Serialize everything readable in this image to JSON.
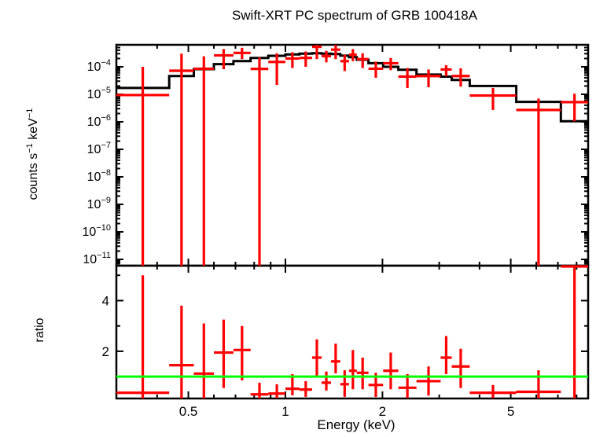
{
  "title": "Swift-XRT PC spectrum of GRB 100418A",
  "colors": {
    "data": "#ff0000",
    "model": "#000000",
    "reference_line": "#00ff00",
    "axis": "#000000",
    "background": "#ffffff"
  },
  "chart_data": {
    "type": "line",
    "title": "Swift-XRT PC spectrum of GRB 100418A",
    "xlabel": "Energy (keV)",
    "ylabel_top_parts": [
      {
        "text": "counts s",
        "sup": false
      },
      {
        "text": "−1",
        "sup": true
      },
      {
        "text": " keV",
        "sup": false
      },
      {
        "text": "−1",
        "sup": true
      }
    ],
    "ylabel_top_plain": "counts s⁻¹ keV⁻¹",
    "ylabel_bottom": "ratio",
    "x_scale": "log",
    "xlim": [
      0.299,
      8.69
    ],
    "x_major_ticks": [
      0.5,
      1,
      2,
      5
    ],
    "x_major_tick_labels": [
      "0.5",
      "1",
      "2",
      "5"
    ],
    "x_minor_ticks": [
      0.4,
      0.6,
      0.7,
      0.8,
      0.9,
      3,
      4,
      6,
      7,
      8
    ],
    "panels": [
      {
        "name": "spectrum",
        "y_scale": "log",
        "ylim": [
          5.9e-12,
          0.00063
        ],
        "y_major_ticks": [
          {
            "value": 0.0001,
            "exp": "−4"
          },
          {
            "value": 1e-05,
            "exp": "−5"
          },
          {
            "value": 1e-06,
            "exp": "−6"
          },
          {
            "value": 1e-07,
            "exp": "−7"
          },
          {
            "value": 1e-08,
            "exp": "−8"
          },
          {
            "value": 1e-09,
            "exp": "−9"
          },
          {
            "value": 1e-10,
            "exp": "−10"
          },
          {
            "value": 1e-11,
            "exp": "−11"
          }
        ]
      },
      {
        "name": "ratio",
        "y_scale": "linear",
        "ylim": [
          0.136,
          5.38
        ],
        "y_major_ticks": [
          {
            "value": 2,
            "label": "2"
          },
          {
            "value": 4,
            "label": "4"
          }
        ],
        "y_minor_ticks": [
          1,
          3,
          5
        ],
        "reference_line": 1
      }
    ],
    "bins": [
      {
        "e_lo": 0.299,
        "e_hi": 0.436,
        "counts": 9.4e-06,
        "counts_hi": 0.0001,
        "counts_lo": null,
        "model": 1.7e-05,
        "ratio": 0.36,
        "ratio_hi": 5.0,
        "ratio_lo": null
      },
      {
        "e_lo": 0.436,
        "e_hi": 0.52,
        "counts": 7.2e-05,
        "counts_hi": 0.0003,
        "counts_lo": null,
        "model": 4.6e-05,
        "ratio": 1.45,
        "ratio_hi": 3.8,
        "ratio_lo": null
      },
      {
        "e_lo": 0.52,
        "e_hi": 0.6,
        "counts": 8.5e-05,
        "counts_hi": 0.00024,
        "counts_lo": null,
        "model": 8.2e-05,
        "ratio": 1.12,
        "ratio_hi": 3.1,
        "ratio_lo": null
      },
      {
        "e_lo": 0.6,
        "e_hi": 0.69,
        "counts": 0.00026,
        "counts_hi": 0.00044,
        "counts_lo": 8.2e-05,
        "model": 0.000125,
        "ratio": 1.95,
        "ratio_hi": 3.25,
        "ratio_lo": 0.55
      },
      {
        "e_lo": 0.69,
        "e_hi": 0.78,
        "counts": 0.00032,
        "counts_hi": 0.00049,
        "counts_lo": 0.00019,
        "model": 0.00016,
        "ratio": 2.05,
        "ratio_hi": 3.0,
        "ratio_lo": 0.85
      },
      {
        "e_lo": 0.78,
        "e_hi": 0.885,
        "counts": 8.4e-05,
        "counts_hi": 0.00022,
        "counts_lo": null,
        "model": 0.00021,
        "ratio": 0.3,
        "ratio_hi": 0.76,
        "ratio_lo": null
      },
      {
        "e_lo": 0.885,
        "e_hi": 1.0,
        "counts": 0.00015,
        "counts_hi": 0.00031,
        "counts_lo": 2.2e-05,
        "model": 0.00025,
        "ratio": 0.33,
        "ratio_hi": 0.7,
        "ratio_lo": 0.15
      },
      {
        "e_lo": 1.0,
        "e_hi": 1.105,
        "counts": 0.0002,
        "counts_hi": 0.00034,
        "counts_lo": 9e-05,
        "model": 0.00028,
        "ratio": 0.52,
        "ratio_hi": 1.1,
        "ratio_lo": 0.26
      },
      {
        "e_lo": 1.105,
        "e_hi": 1.21,
        "counts": 0.00021,
        "counts_hi": 0.00036,
        "counts_lo": 0.0001,
        "model": 0.0003,
        "ratio": 0.49,
        "ratio_hi": 0.82,
        "ratio_lo": 0.2
      },
      {
        "e_lo": 1.21,
        "e_hi": 1.295,
        "counts": 0.00053,
        "counts_hi": null,
        "counts_lo": 0.00019,
        "model": 0.00031,
        "ratio": 1.75,
        "ratio_hi": 2.47,
        "ratio_lo": 1.03
      },
      {
        "e_lo": 1.295,
        "e_hi": 1.385,
        "counts": 0.000245,
        "counts_hi": 0.00038,
        "counts_lo": 0.000145,
        "model": 0.0003,
        "ratio": 0.76,
        "ratio_hi": 1.2,
        "ratio_lo": 0.45
      },
      {
        "e_lo": 1.385,
        "e_hi": 1.48,
        "counts": 0.00042,
        "counts_hi": null,
        "counts_lo": 0.00019,
        "model": 0.00029,
        "ratio": 1.6,
        "ratio_hi": 2.3,
        "ratio_lo": 1.13
      },
      {
        "e_lo": 1.48,
        "e_hi": 1.575,
        "counts": 0.00016,
        "counts_hi": 0.00028,
        "counts_lo": 7e-05,
        "model": 0.000255,
        "ratio": 0.7,
        "ratio_hi": 1.25,
        "ratio_lo": 0.2
      },
      {
        "e_lo": 1.575,
        "e_hi": 1.665,
        "counts": 0.000275,
        "counts_hi": 0.00044,
        "counts_lo": 0.00016,
        "model": 0.000225,
        "ratio": 1.23,
        "ratio_hi": 2.05,
        "ratio_lo": 0.5
      },
      {
        "e_lo": 1.665,
        "e_hi": 1.81,
        "counts": 0.00019,
        "counts_hi": 0.00031,
        "counts_lo": 9e-05,
        "model": 0.00018,
        "ratio": 1.15,
        "ratio_hi": 1.75,
        "ratio_lo": 0.5
      },
      {
        "e_lo": 1.81,
        "e_hi": 2.01,
        "counts": 8.5e-05,
        "counts_hi": 0.000155,
        "counts_lo": 4e-05,
        "model": 0.000135,
        "ratio": 0.67,
        "ratio_hi": 1.15,
        "ratio_lo": 0.2
      },
      {
        "e_lo": 2.01,
        "e_hi": 2.24,
        "counts": 0.000135,
        "counts_hi": 0.00021,
        "counts_lo": 7.5e-05,
        "model": 0.0001,
        "ratio": 1.23,
        "ratio_hi": 1.95,
        "ratio_lo": 0.5
      },
      {
        "e_lo": 2.24,
        "e_hi": 2.55,
        "counts": 4.4e-05,
        "counts_hi": 9e-05,
        "counts_lo": 1.7e-05,
        "model": 7.8e-05,
        "ratio": 0.56,
        "ratio_hi": 1.1,
        "ratio_lo": 0.15
      },
      {
        "e_lo": 2.55,
        "e_hi": 3.03,
        "counts": 4.6e-05,
        "counts_hi": 8e-05,
        "counts_lo": 1.8e-05,
        "model": 5.2e-05,
        "ratio": 0.82,
        "ratio_hi": 1.4,
        "ratio_lo": 0.25
      },
      {
        "e_lo": 3.03,
        "e_hi": 3.28,
        "counts": 8e-05,
        "counts_hi": 0.000115,
        "counts_lo": 4.5e-05,
        "model": 4.4e-05,
        "ratio": 1.75,
        "ratio_hi": 2.6,
        "ratio_lo": 1.1
      },
      {
        "e_lo": 3.28,
        "e_hi": 3.73,
        "counts": 4.6e-05,
        "counts_hi": 8.8e-05,
        "counts_lo": 1.9e-05,
        "model": 3.3e-05,
        "ratio": 1.4,
        "ratio_hi": 2.1,
        "ratio_lo": 0.55
      },
      {
        "e_lo": 3.73,
        "e_hi": 5.2,
        "counts": 9e-06,
        "counts_hi": 1.7e-05,
        "counts_lo": 2.7e-06,
        "model": 2e-05,
        "ratio": 0.36,
        "ratio_hi": 0.67,
        "ratio_lo": 0.15
      },
      {
        "e_lo": 5.2,
        "e_hi": 7.15,
        "counts": 2.7e-06,
        "counts_hi": 7e-06,
        "counts_lo": null,
        "model": 5.3e-06,
        "ratio": 0.4,
        "ratio_hi": 1.25,
        "ratio_lo": null
      },
      {
        "e_lo": 7.15,
        "e_hi": 8.69,
        "counts": 5.2e-06,
        "counts_hi": 1.05e-05,
        "counts_lo": 1.05e-06,
        "model": 1.05e-06,
        "ratio": 5.35,
        "ratio_hi": null,
        "ratio_lo": null
      }
    ]
  }
}
